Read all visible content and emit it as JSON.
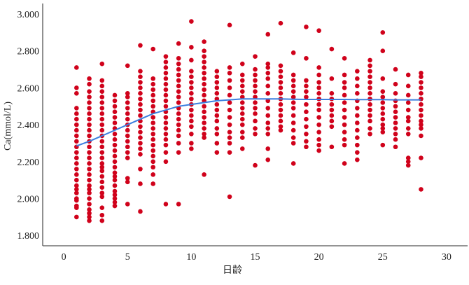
{
  "chart_data": {
    "type": "scatter",
    "title": "",
    "xlabel": "日龄",
    "ylabel": "Ca(mmol/L)",
    "xlim": [
      -1.65,
      31.65
    ],
    "ylim": [
      1.744,
      3.057
    ],
    "xticks": [
      0,
      5,
      10,
      15,
      20,
      25,
      30
    ],
    "yticks": [
      "1.800",
      "2.000",
      "2.200",
      "2.400",
      "2.600",
      "2.800",
      "3.000"
    ],
    "grid": false,
    "colors": {
      "points": "#d0021b",
      "fit_line": "#3b7fe0",
      "axis": "#555555"
    },
    "points": [
      {
        "day": 1,
        "values": [
          2.71,
          2.6,
          2.57,
          2.49,
          2.46,
          2.43,
          2.4,
          2.37,
          2.34,
          2.31,
          2.28,
          2.25,
          2.22,
          2.19,
          2.16,
          2.13,
          2.1,
          2.07,
          2.05,
          2.03,
          2.0,
          1.99,
          1.96,
          1.95,
          1.9
        ]
      },
      {
        "day": 2,
        "values": [
          2.65,
          2.62,
          2.58,
          2.55,
          2.52,
          2.49,
          2.46,
          2.43,
          2.4,
          2.37,
          2.34,
          2.31,
          2.28,
          2.25,
          2.22,
          2.19,
          2.16,
          2.13,
          2.1,
          2.07,
          2.05,
          2.03,
          2.0,
          1.97,
          1.94,
          1.92,
          1.9,
          1.88
        ]
      },
      {
        "day": 3,
        "values": [
          2.73,
          2.64,
          2.61,
          2.58,
          2.55,
          2.52,
          2.49,
          2.46,
          2.43,
          2.4,
          2.37,
          2.34,
          2.31,
          2.28,
          2.25,
          2.22,
          2.19,
          2.17,
          2.15,
          2.12,
          2.09,
          2.06,
          2.03,
          2.01,
          1.95,
          1.91,
          1.88
        ]
      },
      {
        "day": 4,
        "values": [
          2.56,
          2.53,
          2.5,
          2.47,
          2.44,
          2.41,
          2.38,
          2.35,
          2.32,
          2.29,
          2.26,
          2.23,
          2.2,
          2.17,
          2.14,
          2.12,
          2.1,
          2.07,
          2.04,
          2.02,
          2.0,
          1.98,
          1.96
        ]
      },
      {
        "day": 5,
        "values": [
          2.72,
          2.57,
          2.55,
          2.52,
          2.49,
          2.46,
          2.43,
          2.4,
          2.37,
          2.34,
          2.31,
          2.28,
          2.25,
          2.22,
          2.11,
          2.09,
          1.97
        ]
      },
      {
        "day": 6,
        "values": [
          2.83,
          2.69,
          2.66,
          2.63,
          2.6,
          2.57,
          2.54,
          2.51,
          2.48,
          2.45,
          2.42,
          2.39,
          2.36,
          2.33,
          2.3,
          2.27,
          2.24,
          2.16,
          2.08,
          1.93
        ]
      },
      {
        "day": 7,
        "values": [
          2.81,
          2.65,
          2.62,
          2.59,
          2.56,
          2.53,
          2.5,
          2.47,
          2.44,
          2.41,
          2.38,
          2.35,
          2.32,
          2.29,
          2.26,
          2.23,
          2.2,
          2.17,
          2.13,
          2.08
        ]
      },
      {
        "day": 8,
        "values": [
          2.77,
          2.74,
          2.71,
          2.68,
          2.65,
          2.62,
          2.59,
          2.56,
          2.53,
          2.5,
          2.47,
          2.44,
          2.41,
          2.38,
          2.35,
          2.32,
          2.29,
          2.25,
          2.2,
          1.97
        ]
      },
      {
        "day": 9,
        "values": [
          2.84,
          2.76,
          2.73,
          2.7,
          2.67,
          2.64,
          2.61,
          2.58,
          2.55,
          2.52,
          2.49,
          2.46,
          2.43,
          2.4,
          2.37,
          2.34,
          2.3,
          2.25,
          1.97
        ]
      },
      {
        "day": 10,
        "values": [
          2.96,
          2.82,
          2.75,
          2.69,
          2.66,
          2.63,
          2.6,
          2.57,
          2.54,
          2.51,
          2.48,
          2.45,
          2.42,
          2.39,
          2.35,
          2.3,
          2.27
        ]
      },
      {
        "day": 11,
        "values": [
          2.85,
          2.8,
          2.77,
          2.74,
          2.71,
          2.68,
          2.65,
          2.62,
          2.59,
          2.56,
          2.53,
          2.5,
          2.47,
          2.44,
          2.41,
          2.38,
          2.35,
          2.33,
          2.13
        ]
      },
      {
        "day": 12,
        "values": [
          2.69,
          2.66,
          2.63,
          2.6,
          2.57,
          2.54,
          2.51,
          2.48,
          2.45,
          2.42,
          2.38,
          2.35,
          2.3,
          2.25
        ]
      },
      {
        "day": 13,
        "values": [
          2.94,
          2.71,
          2.68,
          2.64,
          2.6,
          2.56,
          2.52,
          2.48,
          2.44,
          2.4,
          2.36,
          2.33,
          2.3,
          2.25,
          2.01
        ]
      },
      {
        "day": 14,
        "values": [
          2.73,
          2.67,
          2.64,
          2.61,
          2.58,
          2.55,
          2.52,
          2.49,
          2.46,
          2.43,
          2.4,
          2.36,
          2.33,
          2.27
        ]
      },
      {
        "day": 15,
        "values": [
          2.77,
          2.7,
          2.67,
          2.64,
          2.61,
          2.58,
          2.55,
          2.52,
          2.49,
          2.46,
          2.42,
          2.38,
          2.35,
          2.18
        ]
      },
      {
        "day": 16,
        "values": [
          2.89,
          2.73,
          2.71,
          2.68,
          2.65,
          2.61,
          2.57,
          2.53,
          2.49,
          2.45,
          2.41,
          2.38,
          2.35,
          2.27,
          2.21
        ]
      },
      {
        "day": 17,
        "values": [
          2.95,
          2.72,
          2.69,
          2.66,
          2.63,
          2.6,
          2.57,
          2.54,
          2.51,
          2.48,
          2.45,
          2.42,
          2.39,
          2.37
        ]
      },
      {
        "day": 18,
        "values": [
          2.79,
          2.67,
          2.64,
          2.61,
          2.58,
          2.55,
          2.52,
          2.49,
          2.45,
          2.41,
          2.37,
          2.33,
          2.3,
          2.19
        ]
      },
      {
        "day": 19,
        "values": [
          2.93,
          2.76,
          2.64,
          2.61,
          2.58,
          2.55,
          2.51,
          2.47,
          2.43,
          2.39,
          2.35,
          2.31,
          2.28
        ]
      },
      {
        "day": 20,
        "values": [
          2.91,
          2.71,
          2.67,
          2.63,
          2.6,
          2.57,
          2.54,
          2.51,
          2.48,
          2.44,
          2.4,
          2.36,
          2.32,
          2.29,
          2.26
        ]
      },
      {
        "day": 21,
        "values": [
          2.81,
          2.65,
          2.57,
          2.54,
          2.51,
          2.48,
          2.45,
          2.42,
          2.39,
          2.28
        ]
      },
      {
        "day": 22,
        "values": [
          2.76,
          2.67,
          2.63,
          2.6,
          2.56,
          2.52,
          2.48,
          2.44,
          2.4,
          2.36,
          2.32,
          2.29,
          2.19
        ]
      },
      {
        "day": 23,
        "values": [
          2.69,
          2.65,
          2.61,
          2.57,
          2.53,
          2.49,
          2.45,
          2.41,
          2.37,
          2.33,
          2.29,
          2.25,
          2.21
        ]
      },
      {
        "day": 24,
        "values": [
          2.75,
          2.72,
          2.69,
          2.66,
          2.63,
          2.6,
          2.57,
          2.54,
          2.51,
          2.48,
          2.45,
          2.42,
          2.38,
          2.35
        ]
      },
      {
        "day": 25,
        "values": [
          2.9,
          2.8,
          2.65,
          2.58,
          2.55,
          2.52,
          2.49,
          2.46,
          2.43,
          2.4,
          2.38,
          2.36,
          2.29
        ]
      },
      {
        "day": 26,
        "values": [
          2.7,
          2.62,
          2.57,
          2.53,
          2.5,
          2.47,
          2.44,
          2.41,
          2.38,
          2.35,
          2.32,
          2.28
        ]
      },
      {
        "day": 27,
        "values": [
          2.67,
          2.61,
          2.56,
          2.52,
          2.48,
          2.44,
          2.42,
          2.38,
          2.35,
          2.22,
          2.2,
          2.18
        ]
      },
      {
        "day": 28,
        "values": [
          2.68,
          2.66,
          2.63,
          2.6,
          2.57,
          2.54,
          2.51,
          2.48,
          2.45,
          2.42,
          2.4,
          2.38,
          2.34,
          2.22,
          2.05
        ]
      }
    ],
    "fit_line": {
      "x": [
        1,
        2,
        3,
        4,
        5,
        6,
        7,
        8,
        9,
        10,
        11,
        12,
        13,
        14,
        15,
        16,
        17,
        18,
        19,
        20,
        21,
        22,
        23,
        24,
        25,
        26,
        27,
        28
      ],
      "y": [
        2.285,
        2.31,
        2.34,
        2.37,
        2.4,
        2.43,
        2.46,
        2.48,
        2.5,
        2.51,
        2.52,
        2.53,
        2.535,
        2.54,
        2.54,
        2.54,
        2.54,
        2.538,
        2.537,
        2.537,
        2.537,
        2.537,
        2.536,
        2.536,
        2.536,
        2.535,
        2.535,
        2.535
      ]
    }
  }
}
